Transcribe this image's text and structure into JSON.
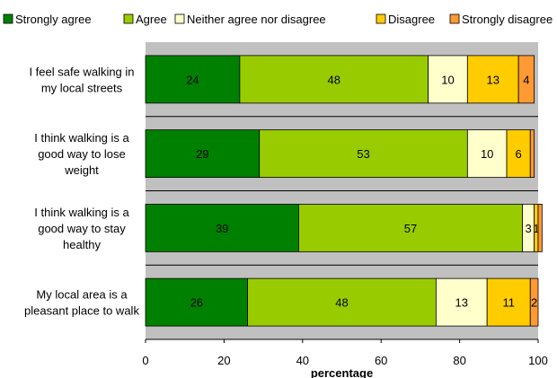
{
  "chart_data": {
    "type": "bar",
    "orientation": "horizontal",
    "stacked": true,
    "categories": [
      [
        "I feel safe walking in",
        "my local streets"
      ],
      [
        "I think walking is a",
        "good way to lose",
        "weight"
      ],
      [
        "I think walking is a",
        "good way to stay",
        "healthy"
      ],
      [
        "My local area is a",
        "pleasant place to walk"
      ]
    ],
    "series": [
      {
        "name": "Strongly agree",
        "color": "#008000",
        "values": [
          24,
          29,
          39,
          26
        ],
        "labels": [
          "24",
          "29",
          "39",
          "26"
        ]
      },
      {
        "name": "Agree",
        "color": "#99CC00",
        "values": [
          48,
          53,
          57,
          48
        ],
        "labels": [
          "48",
          "53",
          "57",
          "48"
        ]
      },
      {
        "name": "Neither agree nor disagree",
        "color": "#FFFFCC",
        "values": [
          10,
          10,
          3,
          13
        ],
        "labels": [
          "10",
          "10",
          "3",
          "13"
        ]
      },
      {
        "name": "Disagree",
        "color": "#FFCC00",
        "values": [
          13,
          6,
          1,
          11
        ],
        "labels": [
          "13",
          "6",
          "1",
          "11"
        ]
      },
      {
        "name": "Strongly disagree",
        "color": "#FF9933",
        "values": [
          4,
          1,
          1,
          2
        ],
        "labels": [
          "4",
          "",
          "",
          "2"
        ]
      }
    ],
    "xlabel": "percentage",
    "xlim": [
      0,
      100
    ],
    "xticks": [
      0,
      20,
      40,
      60,
      80,
      100
    ],
    "legend": "top",
    "plot_background": "#C0C0C0",
    "grid": true
  }
}
